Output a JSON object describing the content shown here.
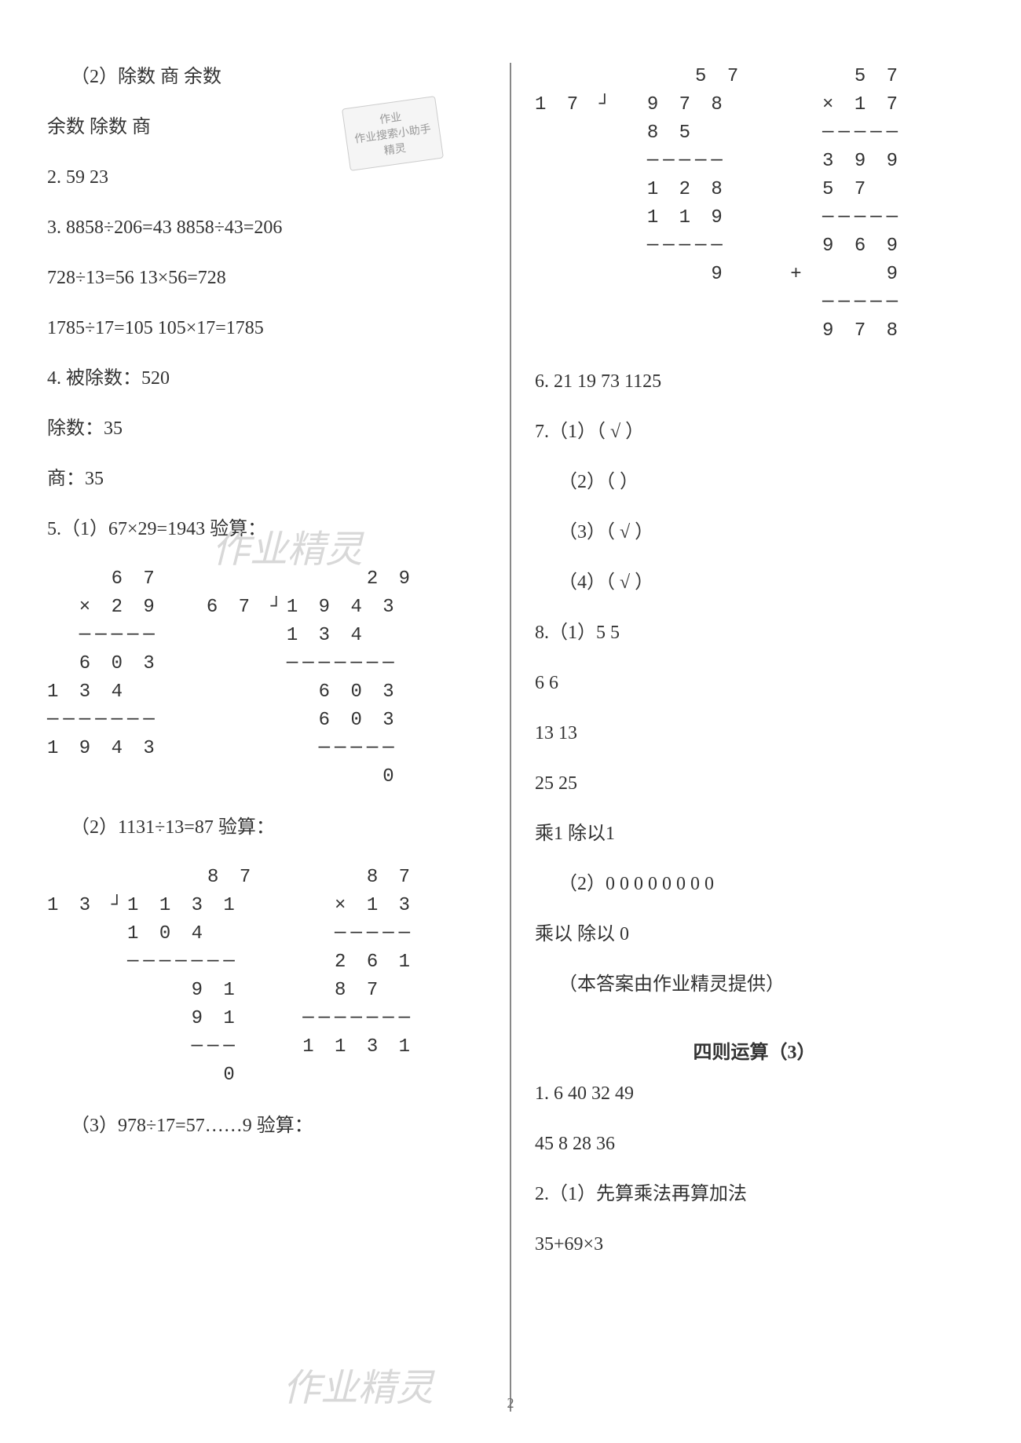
{
  "left": {
    "p1": "（2）除数    商    余数",
    "p2": "余数    除数    商",
    "p3": "2. 59    23",
    "p4": "3. 8858÷206=43    8858÷43=206",
    "p5": "728÷13=56    13×56=728",
    "p6": "1785÷17=105    105×17=1785",
    "p7": "4. 被除数：520",
    "p8": "除数：35",
    "p9": "商：35",
    "p10": "5.（1）67×29=1943    验算：",
    "multA": "    6 7\n  × 2 9\n  ─────\n  6 0 3\n1 3 4\n───────\n1 9 4 3",
    "divA": "          2 9\n6 7 ┘1 9 4 3\n     1 3 4\n     ───────\n       6 0 3\n       6 0 3\n       ─────\n           0",
    "p11": "（2）1131÷13=87    验算：",
    "divB": "          8 7\n1 3 ┘1 1 3 1\n     1 0 4\n     ───────\n         9 1\n         9 1\n         ───\n           0",
    "multB": "    8 7\n  × 1 3\n  ─────\n  2 6 1\n  8 7\n───────\n1 1 3 1",
    "p12": "（3）978÷17=57……9    验算："
  },
  "right": {
    "divC": "          5 7\n1 7 ┘  9 7 8\n       8 5\n       ─────\n       1 2 8\n       1 1 9\n       ─────\n           9",
    "multC": "    5 7\n  × 1 7\n  ─────\n  3 9 9\n  5 7\n  ─────\n  9 6 9\n+     9\n  ─────\n  9 7 8",
    "p13": "6. 21    19    73    1125",
    "p14": "7.（1）（ √ ）",
    "p15": "（2）（    ）",
    "p16": "（3）（ √ ）",
    "p17": "（4）（ √ ）",
    "p18": "8.（1）5    5",
    "p19": "6    6",
    "p20": "13    13",
    "p21": "25    25",
    "p22": "乘1    除以1",
    "p23": "（2）0    0    0    0    0    0    0    0",
    "p24": "乘以    除以    0",
    "p25": "（本答案由作业精灵提供）",
    "title": "四则运算（3）",
    "p26": "1. 6    40    32    49",
    "p27": "45    8    28    36",
    "p28": "2.（1）先算乘法再算加法",
    "p29": "35+69×3"
  },
  "watermark_text": "作业精灵",
  "stamp_line1": "作业",
  "stamp_line2": "作业搜索小助手",
  "stamp_line3": "精灵",
  "page_number": "2",
  "colors": {
    "text": "#333333",
    "background": "#ffffff",
    "divider": "#888888",
    "watermark": "#d8d8d8",
    "stamp_bg": "#f5f5f5",
    "stamp_border": "#cccccc",
    "stamp_text": "#999999"
  },
  "fonts": {
    "body_size_pt": 18,
    "title_weight": "bold",
    "mono_family": "Courier New"
  }
}
